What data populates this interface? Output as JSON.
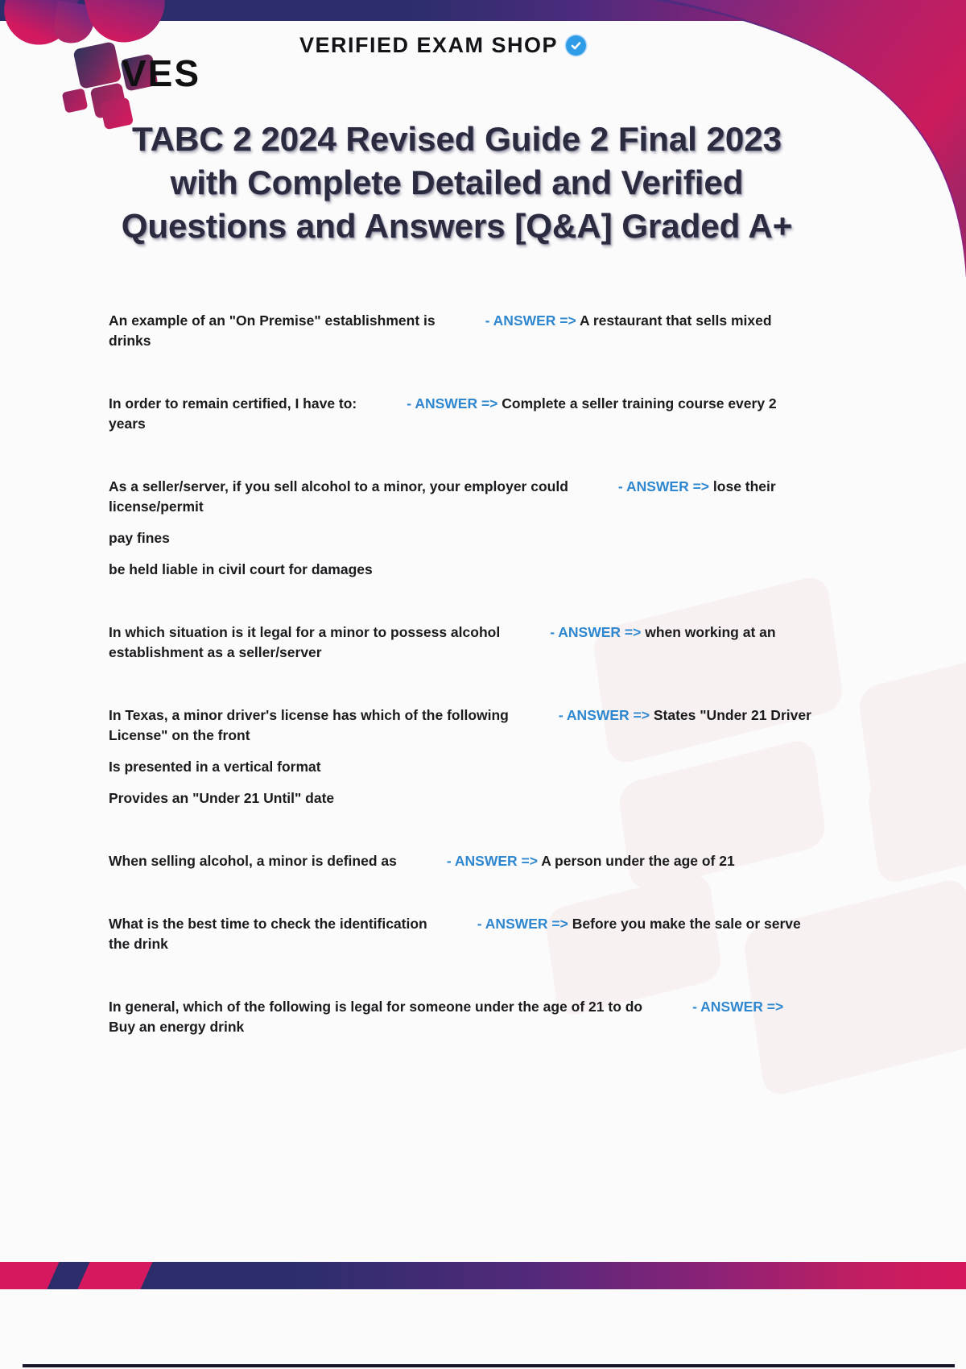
{
  "brand": {
    "logo_text": "VES",
    "shop_title": "VERIFIED EXAM SHOP",
    "verified_icon": "verified-badge-icon"
  },
  "doc_title_lines": [
    "TABC 2 2024 Revised Guide 2 Final 2023",
    "with Complete Detailed and Verified",
    "Questions and Answers [Q&A] Graded A+"
  ],
  "qa": {
    "separator": "-",
    "answer_label": "ANSWER =>",
    "items": [
      {
        "question": "An example of an \"On Premise\" establishment is",
        "answer": "A restaurant that sells mixed drinks",
        "extra": []
      },
      {
        "question": "In order to remain certified, I have to:",
        "answer": "Complete a seller training course every 2 years",
        "extra": []
      },
      {
        "question": "As a seller/server, if you sell alcohol to a minor, your employer could",
        "answer": "lose their license/permit",
        "extra": [
          "pay fines",
          "be held liable in civil court for damages"
        ]
      },
      {
        "question": "In which situation is it legal for a minor to possess alcohol",
        "answer": "when working at an establishment as a seller/server",
        "extra": []
      },
      {
        "question": "In Texas, a minor driver's license has which of the following",
        "answer": "States \"Under 21 Driver License\" on the front",
        "extra": [
          "Is presented in a vertical format",
          "Provides an \"Under 21 Until\" date"
        ]
      },
      {
        "question": "When selling alcohol, a minor is defined as",
        "answer": "A person under the age of 21",
        "extra": []
      },
      {
        "question": "What is the best time to check the identification",
        "answer": "Before you make the sale or serve the drink",
        "extra": []
      },
      {
        "question": "In general, which of the following is legal for someone under the age of 21 to do",
        "answer": "Buy an energy drink",
        "extra": []
      }
    ]
  },
  "colors": {
    "accent_blue": "#2e87cf",
    "brand_navy": "#2b2e6b",
    "brand_purple": "#6d2a84",
    "brand_pink": "#d6195e",
    "text_dark": "#1b1b1e"
  }
}
